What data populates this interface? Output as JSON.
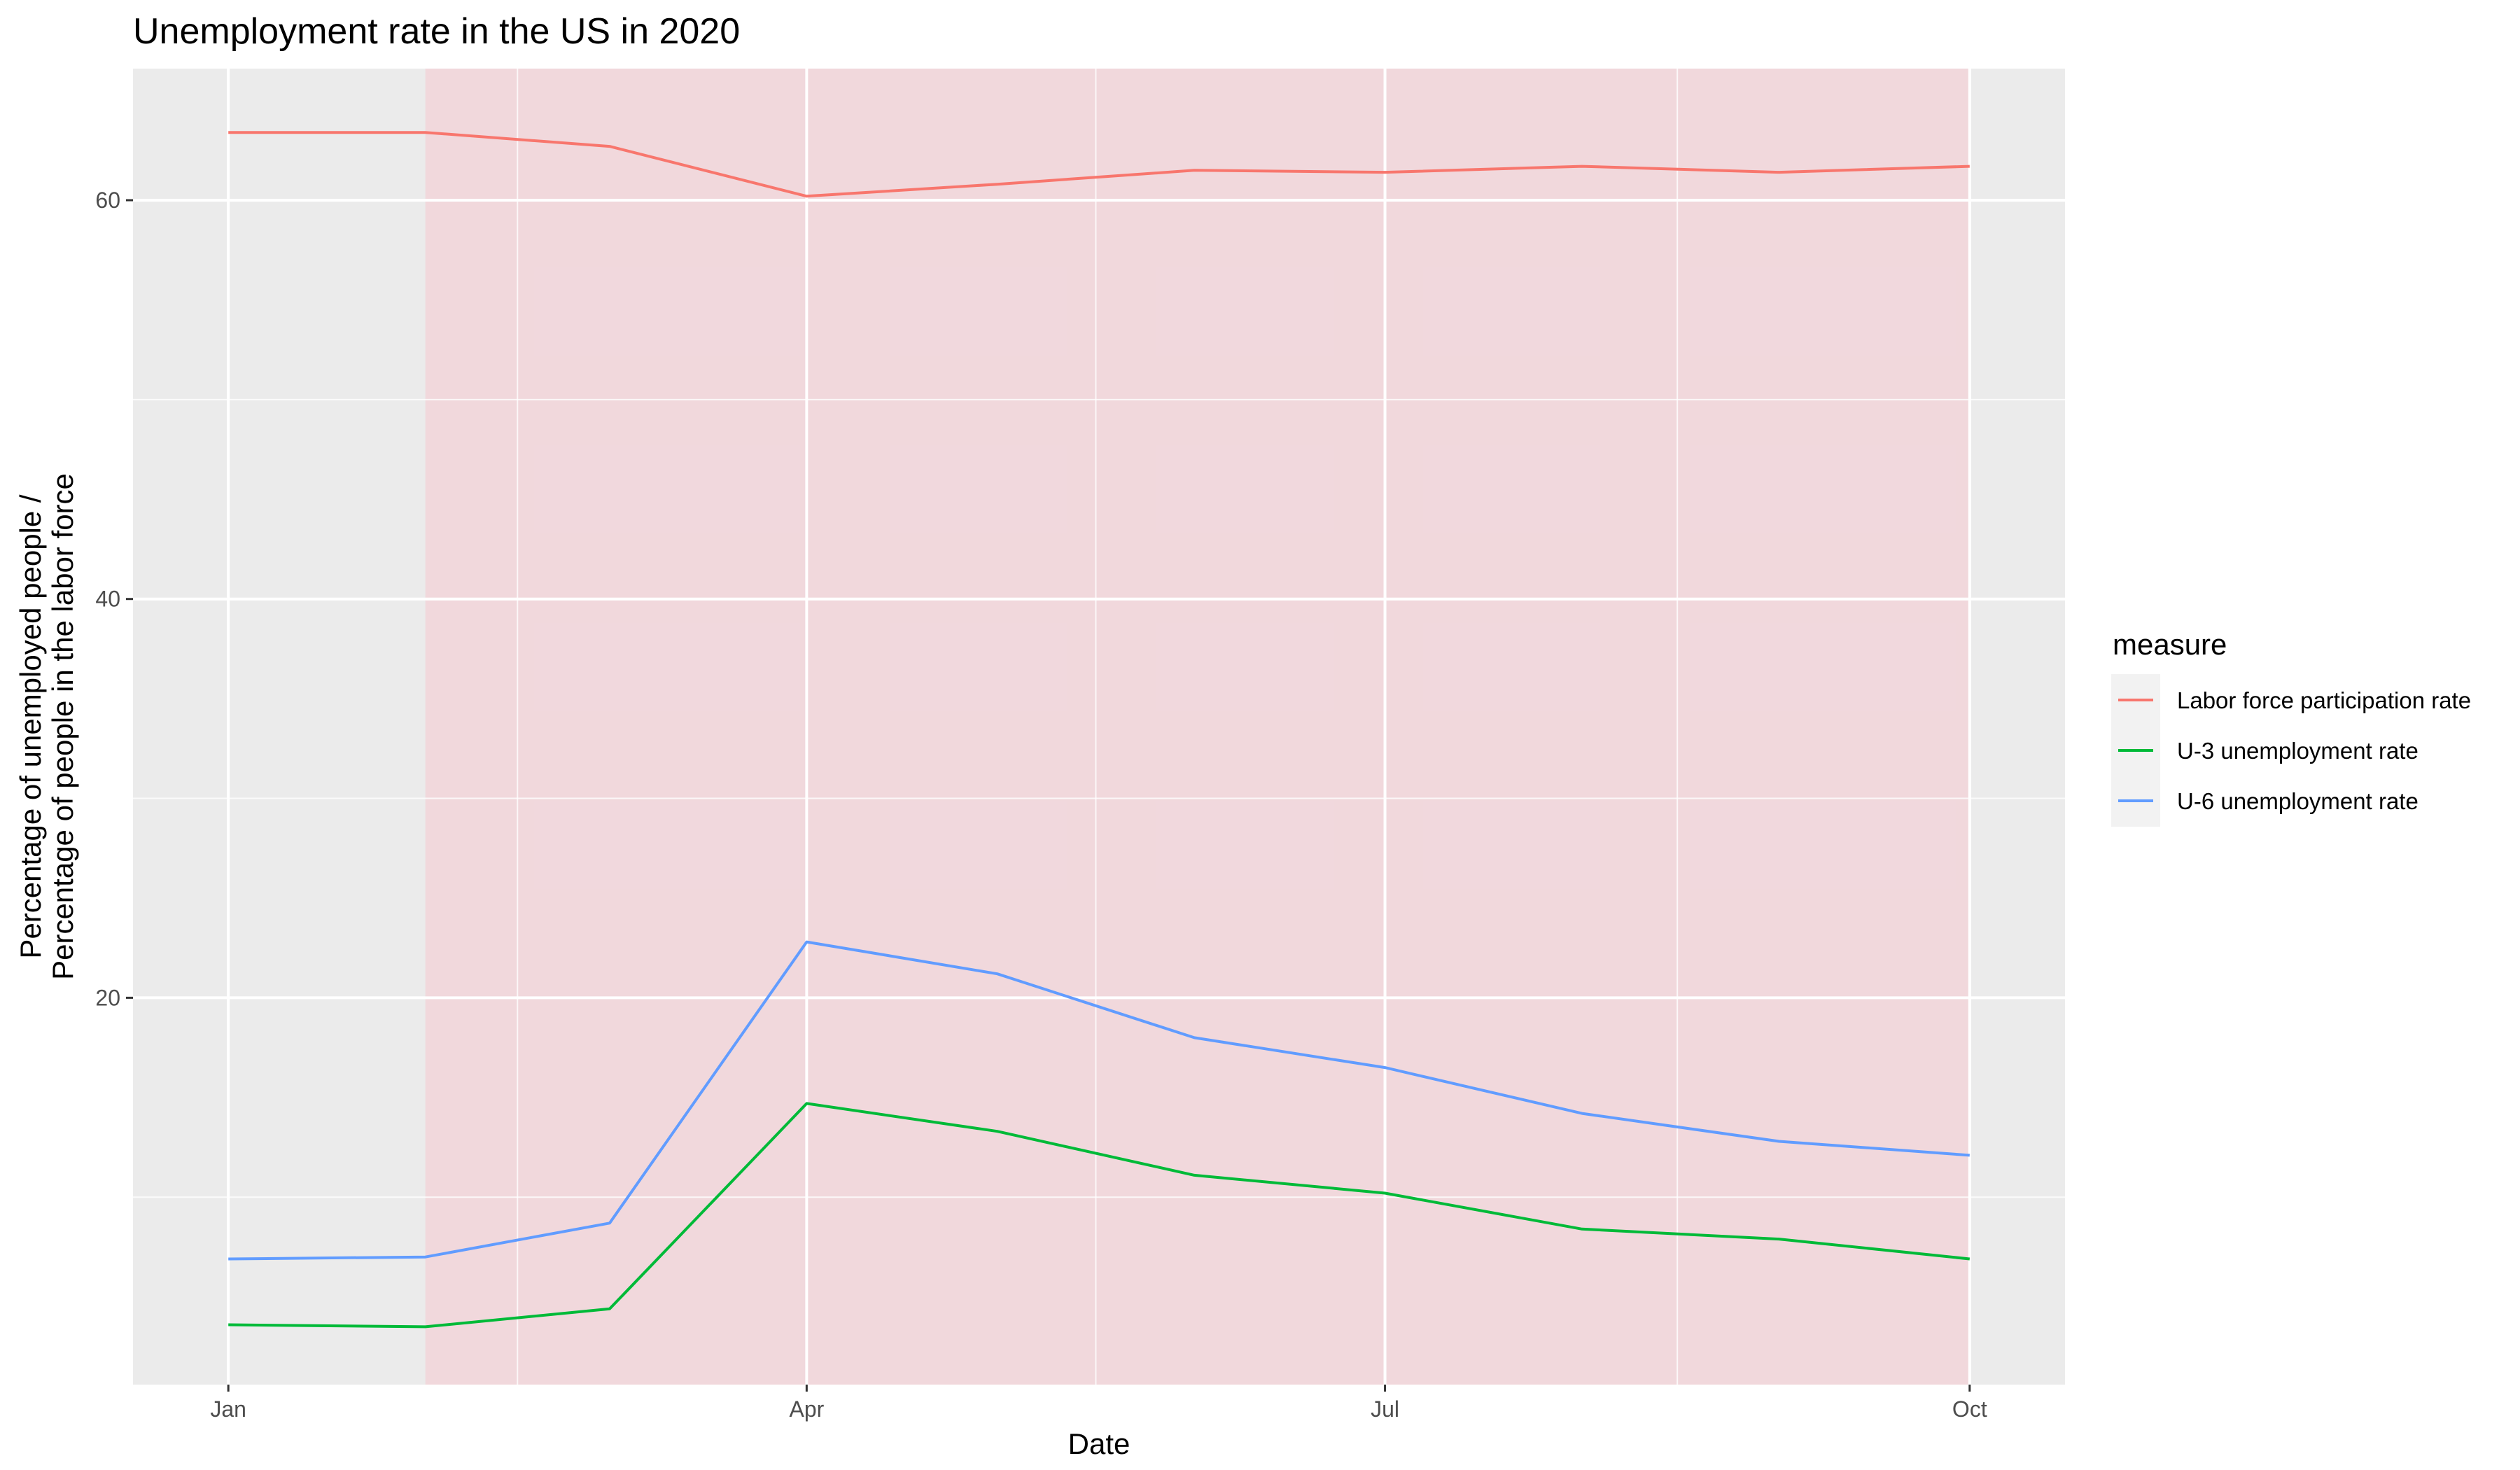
{
  "chart_data": {
    "type": "line",
    "title": "Unemployment rate in the US in 2020",
    "xlabel": "Date",
    "ylabel_lines": [
      "Percentage of unemployed people /",
      "Percentage of people in the labor force"
    ],
    "x": [
      "2020-01-01",
      "2020-02-01",
      "2020-03-01",
      "2020-04-01",
      "2020-05-01",
      "2020-06-01",
      "2020-07-01",
      "2020-08-01",
      "2020-09-01",
      "2020-10-01"
    ],
    "x_ticks": [
      {
        "date": "2020-01-01",
        "label": "Jan"
      },
      {
        "date": "2020-04-01",
        "label": "Apr"
      },
      {
        "date": "2020-07-01",
        "label": "Jul"
      },
      {
        "date": "2020-10-01",
        "label": "Oct"
      }
    ],
    "x_range": [
      "2019-12-17",
      "2020-10-16"
    ],
    "y_ticks": [
      20,
      40,
      60
    ],
    "ylim": [
      0.6,
      66.6
    ],
    "grid": true,
    "shaded_region": {
      "start": "2020-02-01",
      "end": "2020-10-01",
      "color": "#f7c5ce"
    },
    "legend": {
      "title": "measure",
      "position": "right"
    },
    "series": [
      {
        "name": "Labor force participation rate",
        "color": "#F8766D",
        "values": [
          63.4,
          63.4,
          62.7,
          60.2,
          60.8,
          61.5,
          61.4,
          61.7,
          61.4,
          61.7
        ]
      },
      {
        "name": "U-3 unemployment rate",
        "color": "#00BA38",
        "values": [
          3.6,
          3.5,
          4.4,
          14.7,
          13.3,
          11.1,
          10.2,
          8.4,
          7.9,
          6.9
        ]
      },
      {
        "name": "U-6 unemployment rate",
        "color": "#619CFF",
        "values": [
          6.9,
          7.0,
          8.7,
          22.8,
          21.2,
          18.0,
          16.5,
          14.2,
          12.8,
          12.1
        ]
      }
    ]
  }
}
